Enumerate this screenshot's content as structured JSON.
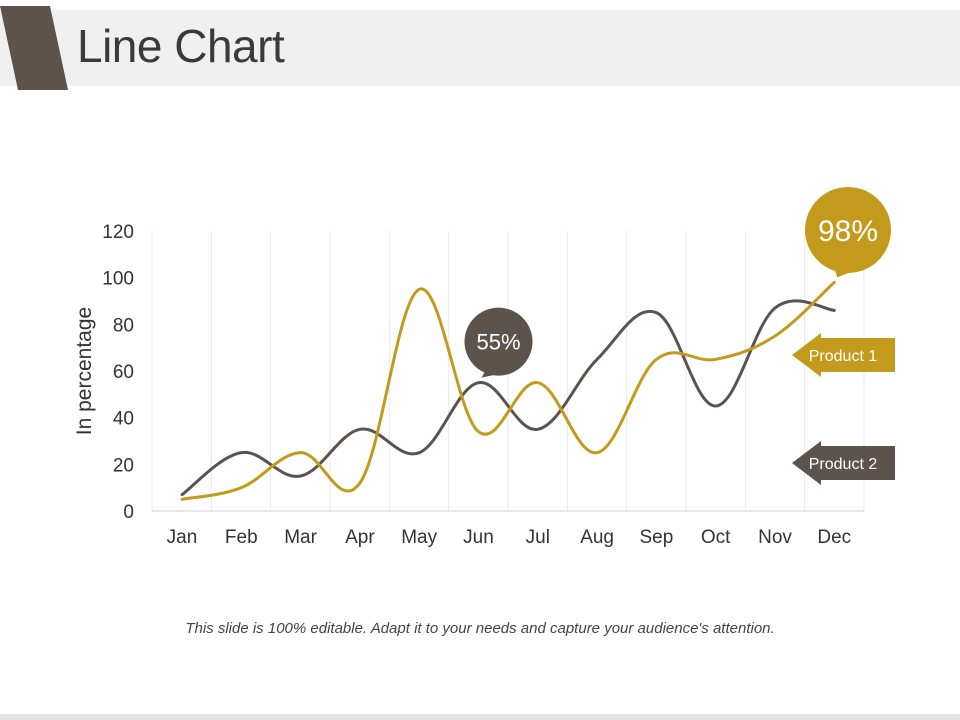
{
  "page": {
    "title": "Line Chart",
    "caption": "This slide is 100% editable. Adapt it to your needs and capture your audience's attention."
  },
  "colors": {
    "product1": "#c49a1d",
    "product2": "#5b534c",
    "accent_dark": "#5b534c",
    "grid": "#e8e8e8",
    "axis_text": "#333333"
  },
  "chart_data": {
    "type": "line",
    "title": "",
    "xlabel": "",
    "ylabel": "In percentage",
    "categories": [
      "Jan",
      "Feb",
      "Mar",
      "Apr",
      "May",
      "Jun",
      "Jul",
      "Aug",
      "Sep",
      "Oct",
      "Nov",
      "Dec"
    ],
    "ylim": [
      0,
      120
    ],
    "yticks": [
      "0",
      "20",
      "40",
      "60",
      "80",
      "100",
      "120"
    ],
    "grid": true,
    "series": [
      {
        "name": "Product 1",
        "color": "#c49a1d",
        "values": [
          5,
          10,
          25,
          12,
          95,
          34,
          55,
          25,
          65,
          65,
          75,
          98
        ]
      },
      {
        "name": "Product 2",
        "color": "#5b534c",
        "values": [
          7,
          25,
          15,
          35,
          25,
          55,
          35,
          65,
          85,
          45,
          87,
          86
        ]
      }
    ],
    "callouts": [
      {
        "text": "55%",
        "series": 1,
        "index": 5,
        "color": "#5b534c"
      },
      {
        "text": "98%",
        "series": 0,
        "index": 11,
        "color": "#c49a1d"
      }
    ],
    "legend": {
      "placement": "right",
      "items": [
        {
          "label": "Product 1",
          "color": "#c49a1d"
        },
        {
          "label": "Product 2",
          "color": "#5b534c"
        }
      ]
    }
  }
}
